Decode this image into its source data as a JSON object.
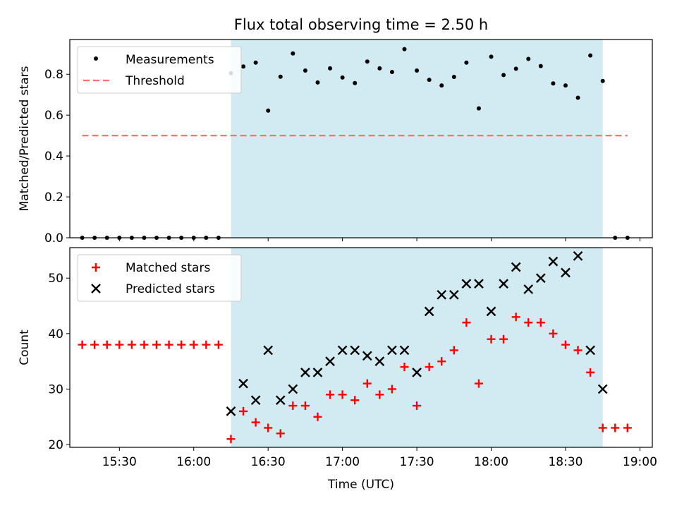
{
  "title": "Flux total observing time = 2.50 h",
  "chart_data": [
    {
      "type": "scatter",
      "panel": "top",
      "title": "Flux total observing time = 2.50 h",
      "xlabel": "",
      "ylabel": "Matched/Predicted stars",
      "ylim": [
        0,
        0.97
      ],
      "yticks": [
        0.0,
        0.2,
        0.4,
        0.6,
        0.8
      ],
      "ytick_labels": [
        "0.0",
        "0.2",
        "0.4",
        "0.6",
        "0.8"
      ],
      "xlim": [
        "15:10",
        "19:05"
      ],
      "legend": {
        "placement": "top-left",
        "entries": [
          "Measurements",
          "Threshold"
        ]
      },
      "shaded_interval": {
        "start": "16:15",
        "end": "18:45",
        "color": "#add8e6"
      },
      "threshold": {
        "name": "Threshold",
        "value": 0.5,
        "x_start": "15:15",
        "x_end": "18:55",
        "color": "#ff7070",
        "style": "dashed"
      },
      "series": [
        {
          "name": "Measurements",
          "marker": "dot",
          "color": "#000000",
          "x": [
            "15:15",
            "15:20",
            "15:25",
            "15:30",
            "15:35",
            "15:40",
            "15:45",
            "15:50",
            "15:55",
            "16:00",
            "16:05",
            "16:10",
            "16:15",
            "16:20",
            "16:25",
            "16:30",
            "16:35",
            "16:40",
            "16:45",
            "16:50",
            "16:55",
            "17:00",
            "17:05",
            "17:10",
            "17:15",
            "17:20",
            "17:25",
            "17:30",
            "17:35",
            "17:40",
            "17:45",
            "17:50",
            "17:55",
            "18:00",
            "18:05",
            "18:10",
            "18:15",
            "18:20",
            "18:25",
            "18:30",
            "18:35",
            "18:40",
            "18:45",
            "18:50",
            "18:55"
          ],
          "values": [
            0,
            0,
            0,
            0,
            0,
            0,
            0,
            0,
            0,
            0,
            0,
            0,
            0.805,
            0.838,
            0.857,
            0.622,
            0.788,
            0.902,
            0.818,
            0.76,
            0.829,
            0.784,
            0.757,
            0.862,
            0.829,
            0.811,
            0.923,
            0.818,
            0.773,
            0.745,
            0.787,
            0.857,
            0.633,
            0.886,
            0.796,
            0.827,
            0.875,
            0.84,
            0.755,
            0.745,
            0.685,
            0.892,
            0.767,
            0,
            0
          ]
        }
      ]
    },
    {
      "type": "scatter",
      "panel": "bottom",
      "title": "",
      "xlabel": "Time (UTC)",
      "ylabel": "Count",
      "ylim": [
        19.5,
        55.5
      ],
      "yticks": [
        20,
        30,
        40,
        50
      ],
      "ytick_labels": [
        "20",
        "30",
        "40",
        "50"
      ],
      "xlim": [
        "15:10",
        "19:05"
      ],
      "xticks": [
        "15:30",
        "16:00",
        "16:30",
        "17:00",
        "17:30",
        "18:00",
        "18:30",
        "19:00"
      ],
      "xtick_labels": [
        "15:30",
        "16:00",
        "16:30",
        "17:00",
        "17:30",
        "18:00",
        "18:30",
        "19:00"
      ],
      "legend": {
        "placement": "top-left",
        "entries": [
          "Matched stars",
          "Predicted stars"
        ]
      },
      "shaded_interval": {
        "start": "16:15",
        "end": "18:45",
        "color": "#add8e6"
      },
      "series": [
        {
          "name": "Matched stars",
          "marker": "plus",
          "color": "#ff0000",
          "x": [
            "15:15",
            "15:20",
            "15:25",
            "15:30",
            "15:35",
            "15:40",
            "15:45",
            "15:50",
            "15:55",
            "16:00",
            "16:05",
            "16:10",
            "16:15",
            "16:20",
            "16:25",
            "16:30",
            "16:35",
            "16:40",
            "16:45",
            "16:50",
            "16:55",
            "17:00",
            "17:05",
            "17:10",
            "17:15",
            "17:20",
            "17:25",
            "17:30",
            "17:35",
            "17:40",
            "17:45",
            "17:50",
            "17:55",
            "18:00",
            "18:05",
            "18:10",
            "18:15",
            "18:20",
            "18:25",
            "18:30",
            "18:35",
            "18:40",
            "18:45",
            "18:50",
            "18:55"
          ],
          "values": [
            38,
            38,
            38,
            38,
            38,
            38,
            38,
            38,
            38,
            38,
            38,
            38,
            21,
            26,
            24,
            23,
            22,
            27,
            27,
            25,
            29,
            29,
            28,
            31,
            29,
            30,
            34,
            27,
            34,
            35,
            37,
            42,
            31,
            39,
            39,
            43,
            42,
            42,
            40,
            38,
            37,
            33,
            23,
            23,
            23
          ]
        },
        {
          "name": "Predicted stars",
          "marker": "x",
          "color": "#000000",
          "x": [
            "16:15",
            "16:20",
            "16:25",
            "16:30",
            "16:35",
            "16:40",
            "16:45",
            "16:50",
            "16:55",
            "17:00",
            "17:05",
            "17:10",
            "17:15",
            "17:20",
            "17:25",
            "17:30",
            "17:35",
            "17:40",
            "17:45",
            "17:50",
            "17:55",
            "18:00",
            "18:05",
            "18:10",
            "18:15",
            "18:20",
            "18:25",
            "18:30",
            "18:35",
            "18:40",
            "18:45"
          ],
          "values": [
            26,
            31,
            28,
            37,
            28,
            30,
            33,
            33,
            35,
            37,
            37,
            36,
            35,
            37,
            37,
            33,
            44,
            47,
            47,
            49,
            49,
            44,
            49,
            52,
            48,
            50,
            53,
            51,
            54,
            37,
            30
          ]
        }
      ]
    }
  ]
}
